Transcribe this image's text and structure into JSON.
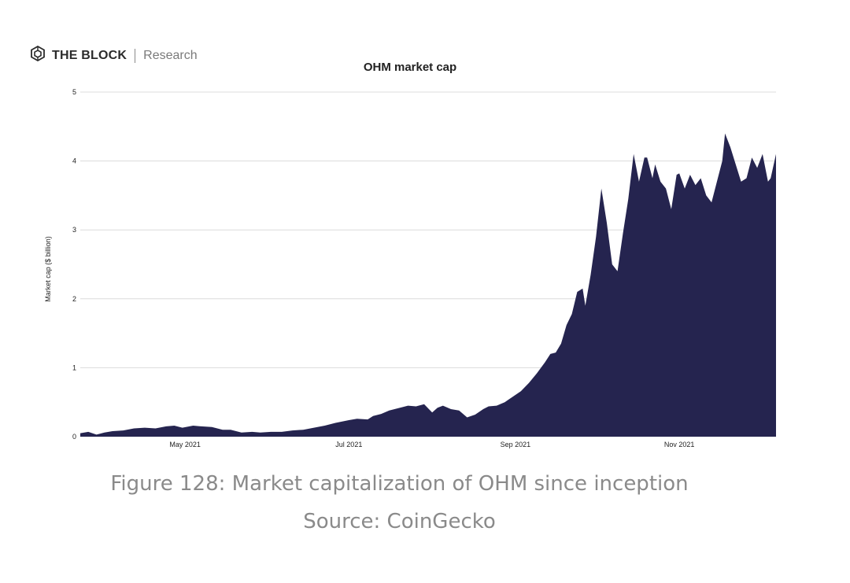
{
  "brand": {
    "name": "THE BLOCK",
    "sub": "Research",
    "icon": "cube-logo-icon"
  },
  "caption": {
    "figure": "Figure 128: Market capitalization of OHM since inception",
    "source": "Source: CoinGecko"
  },
  "colors": {
    "area": "#25244f",
    "grid": "#dcdcdc",
    "text": "#222222"
  },
  "chart_data": {
    "type": "area",
    "title": "OHM market cap",
    "xlabel": "",
    "ylabel": "Market cap ($ billion)",
    "ylim": [
      0,
      5
    ],
    "yticks": [
      0,
      1,
      2,
      3,
      4,
      5
    ],
    "xlim": [
      "2021-03-23",
      "2021-12-07"
    ],
    "xticks": [
      {
        "label": "May 2021",
        "date": "2021-05-01"
      },
      {
        "label": "Jul 2021",
        "date": "2021-07-01"
      },
      {
        "label": "Sep 2021",
        "date": "2021-09-01"
      },
      {
        "label": "Nov 2021",
        "date": "2021-11-01"
      }
    ],
    "grid": true,
    "legend": "none",
    "series": [
      {
        "x": [
          "2021-03-23",
          "2021-03-26",
          "2021-03-29",
          "2021-04-01",
          "2021-04-04",
          "2021-04-08",
          "2021-04-12",
          "2021-04-16",
          "2021-04-20",
          "2021-04-24",
          "2021-04-27",
          "2021-04-30",
          "2021-05-04",
          "2021-05-07",
          "2021-05-11",
          "2021-05-15",
          "2021-05-18",
          "2021-05-22",
          "2021-05-26",
          "2021-05-29",
          "2021-06-02",
          "2021-06-06",
          "2021-06-10",
          "2021-06-14",
          "2021-06-18",
          "2021-06-22",
          "2021-06-26",
          "2021-07-01",
          "2021-07-04",
          "2021-07-08",
          "2021-07-10",
          "2021-07-13",
          "2021-07-16",
          "2021-07-20",
          "2021-07-23",
          "2021-07-26",
          "2021-07-29",
          "2021-08-01",
          "2021-08-03",
          "2021-08-05",
          "2021-08-08",
          "2021-08-11",
          "2021-08-14",
          "2021-08-17",
          "2021-08-20",
          "2021-08-22",
          "2021-08-25",
          "2021-08-28",
          "2021-08-31",
          "2021-09-03",
          "2021-09-06",
          "2021-09-09",
          "2021-09-12",
          "2021-09-14",
          "2021-09-16",
          "2021-09-18",
          "2021-09-20",
          "2021-09-22",
          "2021-09-24",
          "2021-09-26",
          "2021-09-27",
          "2021-09-29",
          "2021-10-01",
          "2021-10-03",
          "2021-10-05",
          "2021-10-07",
          "2021-10-09",
          "2021-10-11",
          "2021-10-13",
          "2021-10-15",
          "2021-10-17",
          "2021-10-19",
          "2021-10-20",
          "2021-10-22",
          "2021-10-23",
          "2021-10-25",
          "2021-10-27",
          "2021-10-29",
          "2021-10-31",
          "2021-11-01",
          "2021-11-03",
          "2021-11-05",
          "2021-11-07",
          "2021-11-09",
          "2021-11-11",
          "2021-11-13",
          "2021-11-15",
          "2021-11-17",
          "2021-11-18",
          "2021-11-20",
          "2021-11-22",
          "2021-11-24",
          "2021-11-26",
          "2021-11-28",
          "2021-11-30",
          "2021-12-02",
          "2021-12-04",
          "2021-12-05",
          "2021-12-07"
        ],
        "y": [
          0.05,
          0.07,
          0.03,
          0.06,
          0.08,
          0.09,
          0.12,
          0.13,
          0.12,
          0.15,
          0.16,
          0.13,
          0.16,
          0.15,
          0.14,
          0.1,
          0.1,
          0.06,
          0.07,
          0.06,
          0.07,
          0.07,
          0.09,
          0.1,
          0.13,
          0.16,
          0.2,
          0.24,
          0.26,
          0.25,
          0.3,
          0.33,
          0.38,
          0.42,
          0.45,
          0.44,
          0.47,
          0.35,
          0.42,
          0.45,
          0.4,
          0.38,
          0.28,
          0.32,
          0.4,
          0.44,
          0.45,
          0.5,
          0.58,
          0.66,
          0.78,
          0.92,
          1.08,
          1.2,
          1.22,
          1.35,
          1.62,
          1.78,
          2.1,
          2.15,
          1.9,
          2.35,
          2.9,
          3.6,
          3.1,
          2.5,
          2.4,
          2.95,
          3.45,
          4.1,
          3.7,
          4.05,
          4.05,
          3.75,
          3.95,
          3.7,
          3.6,
          3.3,
          3.8,
          3.82,
          3.6,
          3.8,
          3.65,
          3.75,
          3.5,
          3.4,
          3.7,
          4.0,
          4.4,
          4.2,
          3.95,
          3.7,
          3.75,
          4.05,
          3.9,
          4.1,
          3.7,
          3.75,
          4.1
        ]
      }
    ]
  }
}
